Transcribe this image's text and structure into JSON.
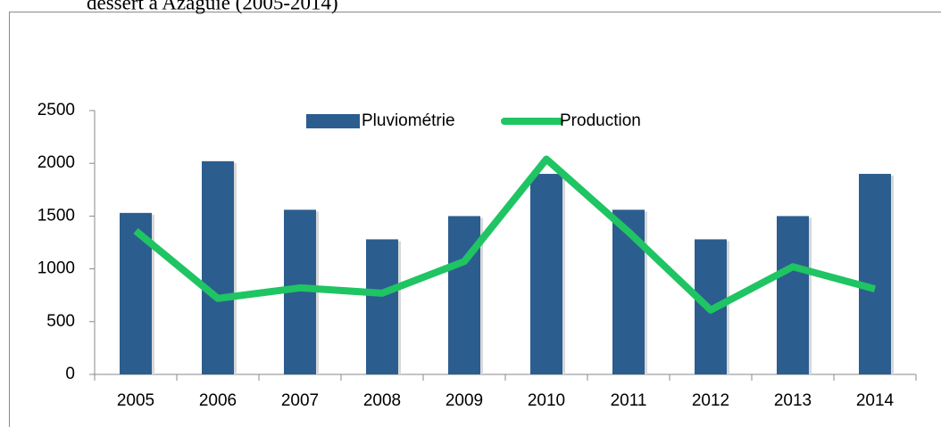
{
  "chart_data": {
    "type": "bar-line",
    "title": "dessert à Azaguié (2005-2014)",
    "categories": [
      "2005",
      "2006",
      "2007",
      "2008",
      "2009",
      "2010",
      "2011",
      "2012",
      "2013",
      "2014"
    ],
    "series": [
      {
        "name": "Pluviométrie",
        "type": "bar",
        "color": "#2c5d8f",
        "values": [
          1530,
          2020,
          1560,
          1280,
          1500,
          1900,
          1560,
          1280,
          1500,
          1900
        ]
      },
      {
        "name": "Production",
        "type": "line",
        "color": "#1fc463",
        "values": [
          1360,
          720,
          820,
          770,
          1070,
          2040,
          1350,
          610,
          1020,
          810
        ]
      }
    ],
    "ylim": [
      0,
      2500
    ],
    "yticks": [
      0,
      500,
      1000,
      1500,
      2000,
      2500
    ],
    "legend": "top"
  }
}
